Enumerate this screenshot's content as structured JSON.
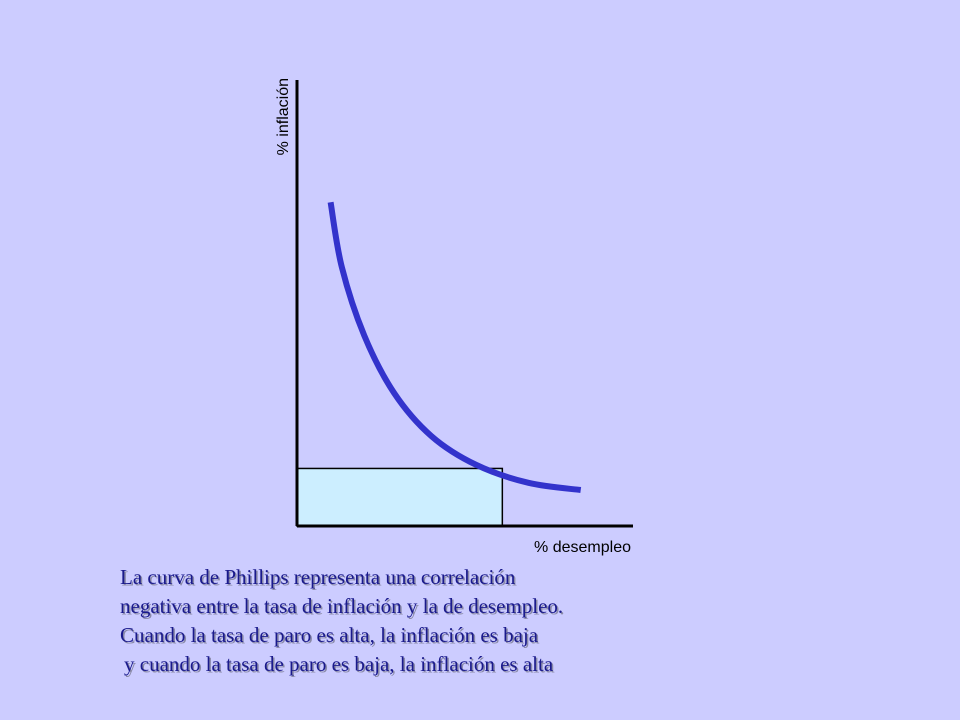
{
  "chart_data": {
    "type": "line",
    "xlabel": "% desempleo",
    "ylabel": "% inflación",
    "grid": false,
    "legend": "none",
    "series": [
      {
        "description_points": [
          {
            "x": 0.9,
            "y": 9.0
          },
          {
            "x": 1.2,
            "y": 7.2
          },
          {
            "x": 1.8,
            "y": 5.3
          },
          {
            "x": 2.6,
            "y": 3.7
          },
          {
            "x": 3.6,
            "y": 2.5
          },
          {
            "x": 4.8,
            "y": 1.7
          },
          {
            "x": 6.2,
            "y": 1.2
          },
          {
            "x": 7.6,
            "y": 1.0
          }
        ]
      }
    ],
    "highlight_point": {
      "x": 5.5,
      "y": 1.6
    },
    "xlim": [
      0,
      9
    ],
    "ylim": [
      0,
      12.4
    ],
    "colors": {
      "curve": "#3333cc",
      "rectangle_fill": "#cceeff",
      "axes": "#000000"
    }
  },
  "caption": {
    "line1": "La curva de Phillips representa una correlación",
    "line2": "negativa entre la tasa de inflación y la de desempleo.",
    "line3": "Cuando la tasa de paro es alta, la inflación es baja",
    "line4": "y cuando la tasa de paro es baja, la inflación es alta"
  }
}
